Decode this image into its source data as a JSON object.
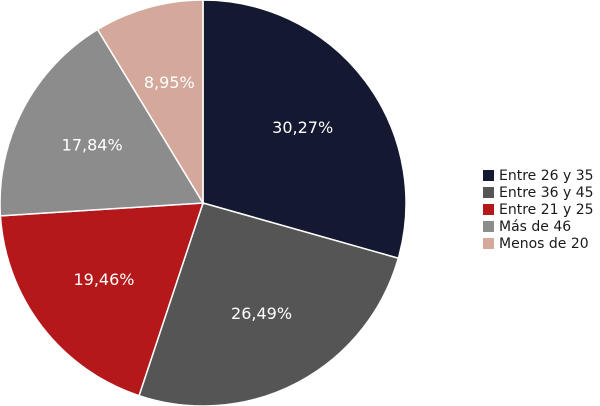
{
  "chart_data": {
    "type": "pie",
    "legend_position": "right",
    "slices": [
      {
        "name": "Entre 26 y 35",
        "value": 30.27,
        "label": "30,27%",
        "color": "#141830"
      },
      {
        "name": "Entre 36 y 45",
        "value": 26.49,
        "label": "26,49%",
        "color": "#555555"
      },
      {
        "name": "Entre 21 y 25",
        "value": 19.46,
        "label": "19,46%",
        "color": "#b5181a"
      },
      {
        "name": "Más de 46",
        "value": 17.84,
        "label": "17,84%",
        "color": "#8c8c8c"
      },
      {
        "name": "Menos de 20",
        "value": 8.95,
        "label": "8,95%",
        "color": "#d4a99b"
      }
    ]
  }
}
